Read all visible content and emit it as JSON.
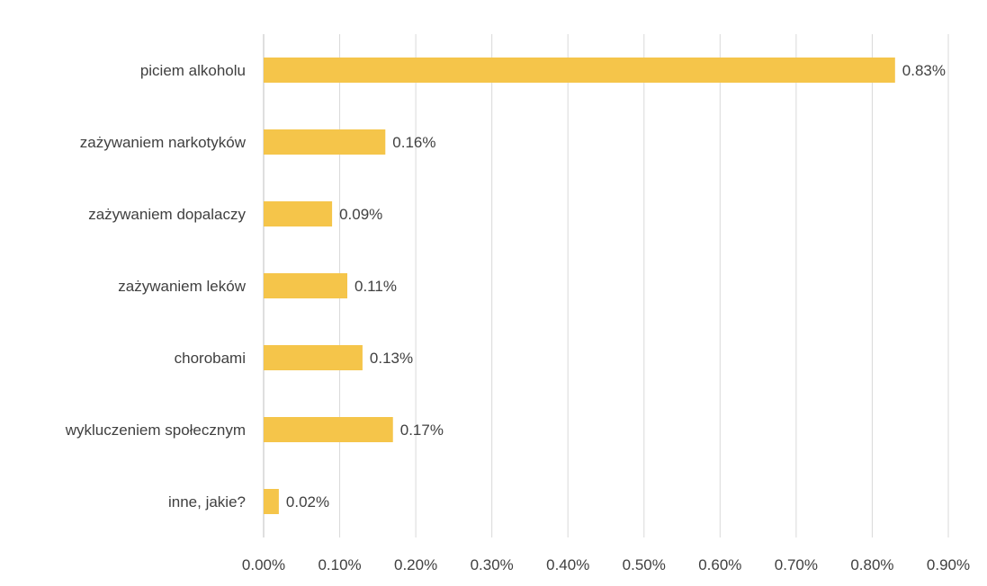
{
  "chart_data": {
    "type": "bar",
    "orientation": "horizontal",
    "categories": [
      "piciem alkoholu",
      "zażywaniem narkotyków",
      "zażywaniem dopalaczy",
      "zażywaniem leków",
      "chorobami",
      "wykluczeniem społecznym",
      "inne, jakie?"
    ],
    "values": [
      0.83,
      0.16,
      0.09,
      0.11,
      0.13,
      0.17,
      0.02
    ],
    "value_labels": [
      "0.83%",
      "0.16%",
      "0.09%",
      "0.11%",
      "0.13%",
      "0.17%",
      "0.02%"
    ],
    "x_ticks": [
      0,
      0.1,
      0.2,
      0.3,
      0.4,
      0.5,
      0.6,
      0.7,
      0.8,
      0.9
    ],
    "x_tick_labels": [
      "0.00%",
      "0.10%",
      "0.20%",
      "0.30%",
      "0.40%",
      "0.50%",
      "0.60%",
      "0.70%",
      "0.80%",
      "0.90%"
    ],
    "xlim": [
      0,
      0.9
    ],
    "grid": true,
    "legend": "none",
    "bar_color": "#F5C54A",
    "grid_color": "#d9d9d9",
    "text_color": "#404040"
  }
}
